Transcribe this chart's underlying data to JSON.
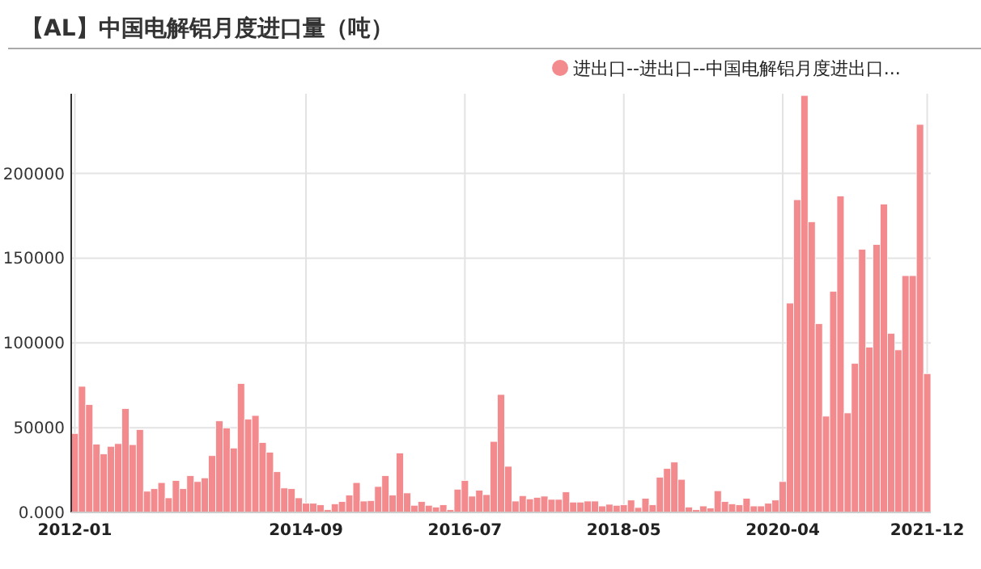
{
  "chart_data": {
    "type": "bar",
    "title": "【AL】中国电解铝月度进口量（吨）",
    "categories": [
      "2012-01",
      null,
      null,
      null,
      null,
      null,
      null,
      null,
      null,
      null,
      null,
      null,
      null,
      null,
      null,
      null,
      null,
      null,
      null,
      null,
      null,
      null,
      null,
      null,
      null,
      null,
      null,
      null,
      null,
      null,
      null,
      null,
      "2014-09",
      null,
      null,
      null,
      null,
      null,
      null,
      null,
      null,
      null,
      null,
      null,
      null,
      null,
      null,
      null,
      null,
      null,
      null,
      null,
      null,
      null,
      "2016-07",
      null,
      null,
      null,
      null,
      null,
      null,
      null,
      null,
      null,
      null,
      null,
      null,
      null,
      null,
      null,
      null,
      null,
      null,
      null,
      null,
      null,
      "2018-05",
      null,
      null,
      null,
      null,
      null,
      null,
      null,
      null,
      null,
      null,
      null,
      null,
      null,
      null,
      null,
      null,
      null,
      null,
      null,
      null,
      null,
      "2020-04",
      null,
      null,
      null,
      null,
      null,
      null,
      null,
      null,
      null,
      null,
      null,
      null,
      null,
      null,
      null,
      null,
      null,
      null,
      null,
      "2021-12"
    ],
    "series": [
      {
        "name": "进出口--进出口--中国电解铝月度进出口...",
        "color": "#f38b8e",
        "values": [
          46600,
          74400,
          63600,
          40300,
          34500,
          39000,
          40600,
          61300,
          40000,
          48900,
          12500,
          14000,
          17600,
          8600,
          18800,
          14000,
          21700,
          18200,
          20400,
          33500,
          54000,
          49800,
          38000,
          76000,
          55000,
          57200,
          41200,
          35500,
          24000,
          14400,
          14000,
          8600,
          5400,
          5400,
          4500,
          1600,
          5100,
          6400,
          10200,
          17600,
          6700,
          7000,
          15300,
          21700,
          10200,
          35100,
          11500,
          4200,
          6400,
          4200,
          3200,
          4500,
          1600,
          13700,
          18800,
          9600,
          13100,
          10500,
          41900,
          69600,
          27200,
          6700,
          9900,
          8000,
          8900,
          9600,
          7700,
          7700,
          12100,
          6100,
          6100,
          6700,
          6700,
          3800,
          4800,
          4200,
          4500,
          7300,
          2900,
          8300,
          4500,
          20800,
          25900,
          29700,
          19500,
          3200,
          1600,
          3800,
          2600,
          12800,
          6400,
          5100,
          4500,
          8300,
          3800,
          3800,
          5400,
          7300,
          18200,
          123500,
          184500,
          246000,
          171500,
          111400,
          56800,
          130500,
          186700,
          58700,
          87900,
          155300,
          97500,
          158100,
          181900,
          105700,
          95900,
          139700,
          139700,
          228900,
          81900
        ]
      }
    ],
    "ylim": [
      0,
      247000
    ],
    "yticks": [
      {
        "value": 0,
        "label": "0.000"
      },
      50000,
      100000,
      150000,
      200000
    ],
    "grid": true,
    "legend": "top right"
  }
}
